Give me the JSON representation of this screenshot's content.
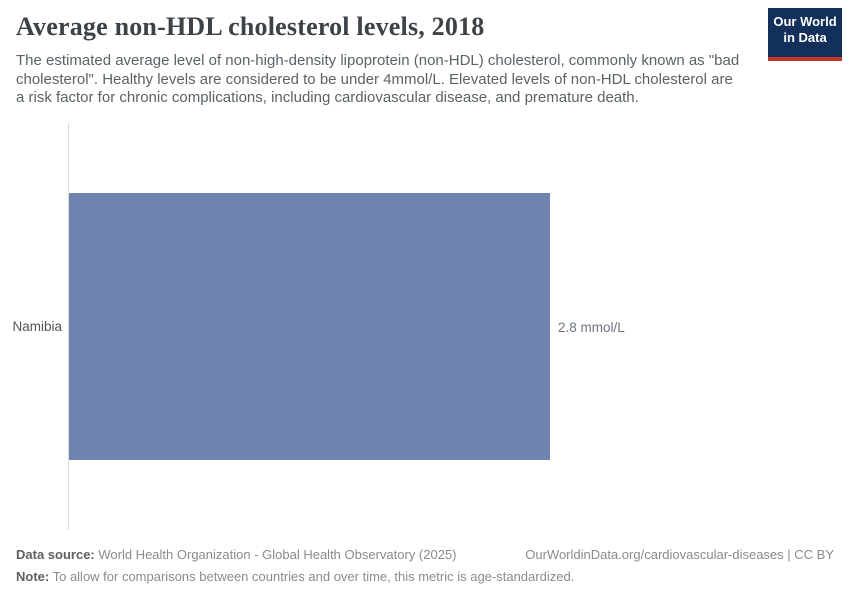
{
  "header": {
    "title": "Average non-HDL cholesterol levels, 2018",
    "subtitle": "The estimated average level of non-high-density lipoprotein (non-HDL) cholesterol, commonly known as \"bad cholesterol\". Healthy levels are considered to be under 4mmol/L. Elevated levels of non-HDL cholesterol are a risk factor for chronic complications, including cardiovascular disease, and premature death.",
    "logo": {
      "line1": "Our World",
      "line2": "in Data"
    }
  },
  "chart_data": {
    "type": "bar",
    "orientation": "horizontal",
    "title": "Average non-HDL cholesterol levels, 2018",
    "year": "2018",
    "unit": "mmol/L",
    "categories": [
      "Namibia"
    ],
    "values": [
      2.8
    ],
    "value_labels": [
      "2.8 mmol/L"
    ],
    "grid": false,
    "x_ticks": [],
    "legend": "none"
  },
  "footer": {
    "data_source_label": "Data source:",
    "data_source": " World Health Organization - Global Health Observatory (2025)",
    "credit": "OurWorldinData.org/cardiovascular-diseases | CC BY",
    "note_label": "Note:",
    "note": " To allow for comparisons between countries and over time, this metric is age-standardized."
  },
  "colors": {
    "bar": "#6e84ae",
    "logo_background": "#12305a",
    "logo_stripe": "#c0392b",
    "axis_line": "#dcdcdc",
    "title_text": "#3d4247",
    "subtitle_text": "#5b6266",
    "footer_text": "#8b8b8b"
  }
}
